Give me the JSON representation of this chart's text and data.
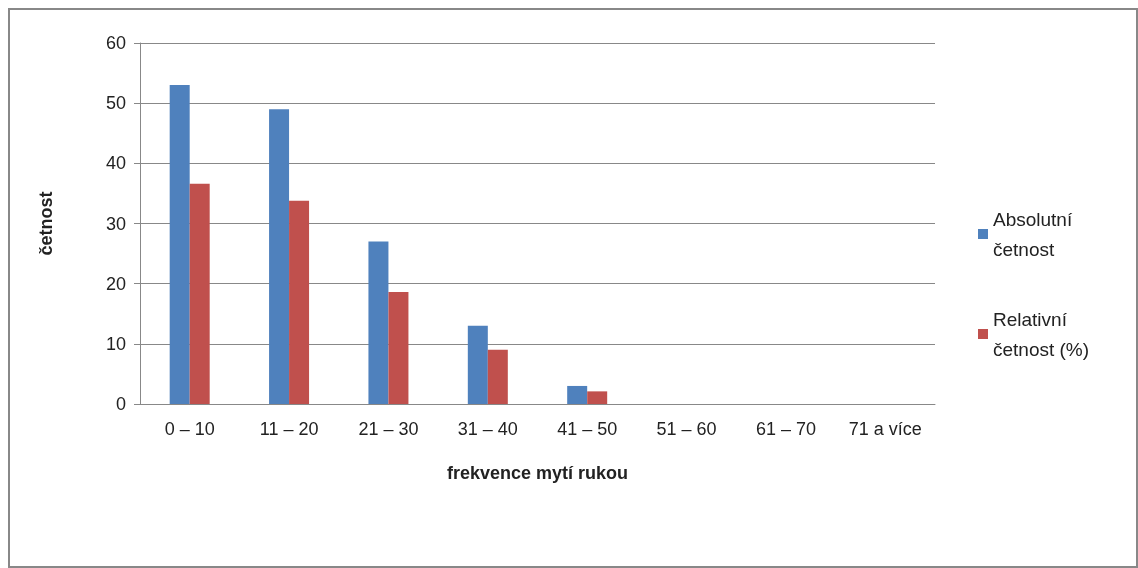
{
  "chart_data": {
    "type": "bar",
    "xlabel": "frekvence mytí rukou",
    "ylabel": "četnost",
    "categories": [
      "0 – 10",
      "11 – 20",
      "21 – 30",
      "31 – 40",
      "41 – 50",
      "51 – 60",
      "61 – 70",
      "71 a více"
    ],
    "series": [
      {
        "name": "Absolutní četnost",
        "color": "#4f81bd",
        "values": [
          53,
          49,
          27,
          13,
          3,
          0,
          0,
          0
        ]
      },
      {
        "name": "Relativní četnost (%)",
        "color": "#c0504d",
        "values": [
          36.6,
          33.8,
          18.6,
          9,
          2.1,
          0,
          0,
          0
        ]
      }
    ],
    "ylim": [
      0,
      60
    ],
    "yticks": [
      0,
      10,
      20,
      30,
      40,
      50,
      60
    ],
    "grid": "y",
    "legend": "right"
  }
}
